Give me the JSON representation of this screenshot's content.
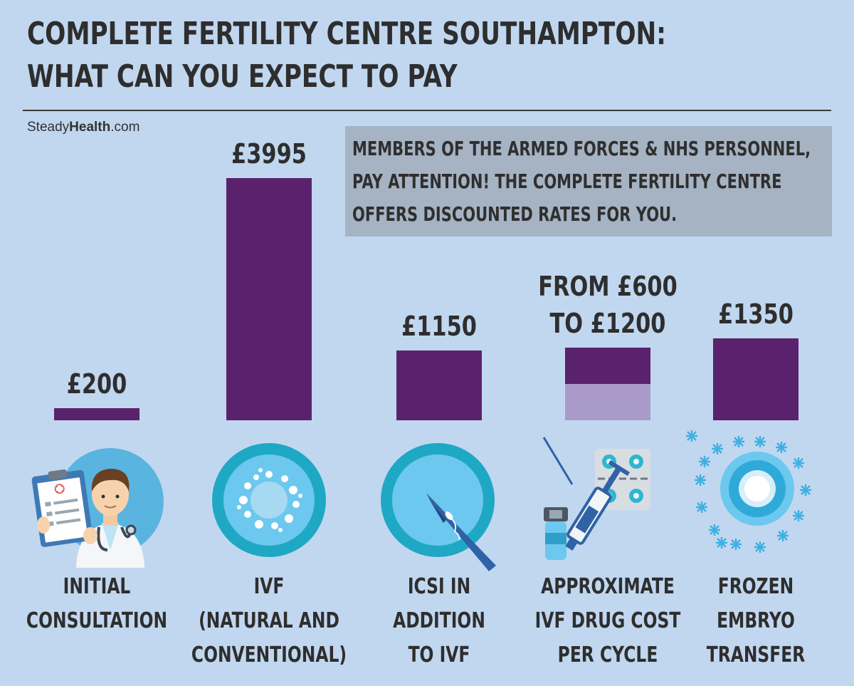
{
  "title_lines": [
    "COMPLETE FERTILITY CENTRE SOUTHAMPTON:",
    "WHAT CAN YOU EXPECT TO PAY"
  ],
  "brand": {
    "part1": "Steady",
    "part2": "Health",
    "part3": ".com"
  },
  "notice_lines": [
    "MEMBERS OF THE ARMED FORCES & NHS PERSONNEL,",
    "PAY ATTENTION! THE COMPLETE FERTILITY CENTRE",
    "OFFERS DISCOUNTED RATES FOR YOU."
  ],
  "colors": {
    "bar": "#5a226c",
    "bar_range": "#aa9ac9",
    "background": "#c1d7f0",
    "notice_box": "#a5b3c3"
  },
  "chart_data": {
    "type": "bar",
    "unit": "£",
    "categories": [
      [
        "INITIAL",
        "CONSULTATION"
      ],
      [
        "IVF",
        "(NATURAL AND",
        "CONVENTIONAL)"
      ],
      [
        "ICSI IN",
        "ADDITION",
        "TO IVF"
      ],
      [
        "APPROXIMATE",
        "IVF DRUG COST",
        "PER CYCLE"
      ],
      [
        "FROZEN",
        "EMBRYO",
        "TRANSFER"
      ]
    ],
    "values": [
      200,
      3995,
      1150,
      1200,
      1350
    ],
    "range_min": [
      null,
      null,
      null,
      600,
      null
    ],
    "data_labels": [
      [
        "£200"
      ],
      [
        "£3995"
      ],
      [
        "£1150"
      ],
      [
        "FROM £600",
        "TO £1200"
      ],
      [
        "£1350"
      ]
    ],
    "icons": [
      "doctor-icon",
      "ivf-cell-icon",
      "icsi-needle-icon",
      "syringe-pills-icon",
      "frozen-embryo-icon"
    ]
  }
}
